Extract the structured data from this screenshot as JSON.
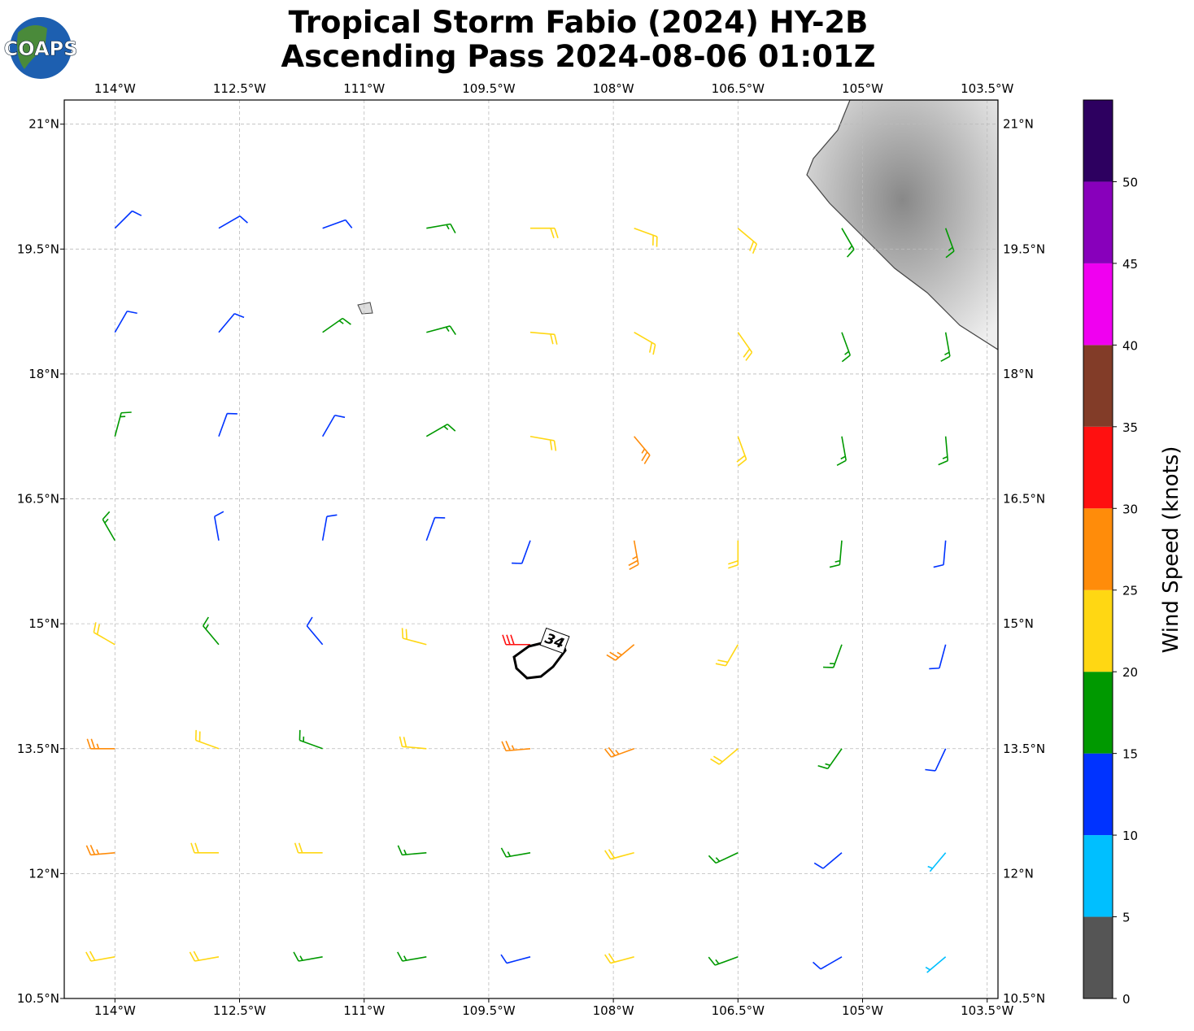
{
  "logo": "COAPS",
  "chart_data": {
    "type": "barbs",
    "title": "Tropical Storm Fabio (2024) HY-2B",
    "subtitle": "Ascending Pass 2024-08-06 01:01Z",
    "xlim": [
      -114.61,
      -103.37
    ],
    "ylim": [
      10.5,
      21.29
    ],
    "xticks": [
      {
        "value": -114,
        "label": "114°W"
      },
      {
        "value": -112.5,
        "label": "112.5°W"
      },
      {
        "value": -111,
        "label": "111°W"
      },
      {
        "value": -109.5,
        "label": "109.5°W"
      },
      {
        "value": -108,
        "label": "108°W"
      },
      {
        "value": -106.5,
        "label": "106.5°W"
      },
      {
        "value": -105,
        "label": "105°W"
      },
      {
        "value": -103.5,
        "label": "103.5°W"
      }
    ],
    "yticks": [
      {
        "value": 10.5,
        "label": "10.5°N"
      },
      {
        "value": 12,
        "label": "12°N"
      },
      {
        "value": 13.5,
        "label": "13.5°N"
      },
      {
        "value": 15,
        "label": "15°N"
      },
      {
        "value": 16.5,
        "label": "16.5°N"
      },
      {
        "value": 18,
        "label": "18°N"
      },
      {
        "value": 19.5,
        "label": "19.5°N"
      },
      {
        "value": 21,
        "label": "21°N"
      }
    ],
    "grid": true,
    "contour_label": "34",
    "colorbar": {
      "label": "Wind Speed (knots)",
      "lim": [
        0,
        55
      ],
      "bounds": [
        0,
        5,
        10,
        15,
        20,
        25,
        30,
        35,
        40,
        45,
        50,
        55
      ],
      "colors": [
        "#555555",
        "#00bfff",
        "#0033ff",
        "#009900",
        "#ffd713",
        "#ff8c0a",
        "#ff1010",
        "#823c28",
        "#f000f0",
        "#8800bb",
        "#2d0060"
      ],
      "ticks": [
        0,
        5,
        10,
        15,
        20,
        25,
        30,
        35,
        40,
        45,
        50
      ]
    },
    "barbs": {
      "lon": [
        -114,
        -112.75,
        -111.5,
        -110.25,
        -109,
        -107.75,
        -106.5,
        -105.25,
        -104,
        -114,
        -112.75,
        -111.5,
        -110.25,
        -109,
        -107.75,
        -106.5,
        -105.25,
        -104,
        -114,
        -112.75,
        -111.5,
        -110.25,
        -109,
        -107.75,
        -106.5,
        -105.25,
        -104,
        -114,
        -112.75,
        -111.5,
        -110.25,
        -109,
        -107.75,
        -106.5,
        -105.25,
        -104,
        -114,
        -112.75,
        -111.5,
        -110.25,
        -109,
        -107.75,
        -106.5,
        -105.25,
        -104,
        -114,
        -112.75,
        -111.5,
        -110.25,
        -109,
        -107.75,
        -106.5,
        -105.25,
        -104,
        -114,
        -112.75,
        -111.5,
        -110.25,
        -109,
        -107.75,
        -106.5,
        -105.25,
        -104,
        -114,
        -112.75,
        -111.5,
        -110.25,
        -109,
        -107.75,
        -106.5,
        -105.25,
        -104
      ],
      "lat": [
        19.75,
        19.75,
        19.75,
        19.75,
        19.75,
        19.75,
        19.75,
        19.75,
        19.75,
        18.5,
        18.5,
        18.5,
        18.5,
        18.5,
        18.5,
        18.5,
        18.5,
        18.5,
        17.25,
        17.25,
        17.25,
        17.25,
        17.25,
        17.25,
        17.25,
        17.25,
        17.25,
        16,
        16,
        16,
        16,
        16,
        16,
        16,
        16,
        16,
        14.75,
        14.75,
        14.75,
        14.75,
        14.75,
        14.75,
        14.75,
        14.75,
        14.75,
        13.5,
        13.5,
        13.5,
        13.5,
        13.5,
        13.5,
        13.5,
        13.5,
        13.5,
        12.25,
        12.25,
        12.25,
        12.25,
        12.25,
        12.25,
        12.25,
        12.25,
        12.25,
        11,
        11,
        11,
        11,
        11,
        11,
        11,
        11,
        11
      ],
      "speed": [
        12,
        12,
        14,
        18,
        20,
        22,
        22,
        17,
        15,
        14,
        14,
        17,
        19,
        23,
        24,
        23,
        19,
        17,
        17,
        14,
        13,
        19,
        24,
        28,
        23,
        19,
        15,
        17,
        13,
        10,
        14,
        13,
        26,
        23,
        18,
        14,
        22,
        15,
        12,
        21,
        32,
        28,
        23,
        18,
        12,
        26,
        22,
        18,
        23,
        28,
        27,
        22,
        16,
        10,
        27,
        23,
        21,
        19,
        17,
        22,
        18,
        12,
        8,
        23,
        23,
        19,
        17,
        13,
        22,
        17,
        10,
        6
      ],
      "direction": [
        45,
        60,
        70,
        80,
        90,
        110,
        130,
        150,
        160,
        30,
        40,
        55,
        75,
        95,
        120,
        145,
        160,
        170,
        15,
        20,
        30,
        60,
        100,
        140,
        160,
        170,
        175,
        330,
        350,
        10,
        20,
        200,
        170,
        180,
        185,
        185,
        300,
        320,
        320,
        285,
        270,
        230,
        210,
        200,
        195,
        270,
        290,
        290,
        275,
        265,
        250,
        230,
        215,
        205,
        265,
        270,
        270,
        265,
        260,
        255,
        245,
        230,
        220,
        260,
        260,
        260,
        260,
        255,
        255,
        250,
        240,
        230
      ]
    }
  }
}
